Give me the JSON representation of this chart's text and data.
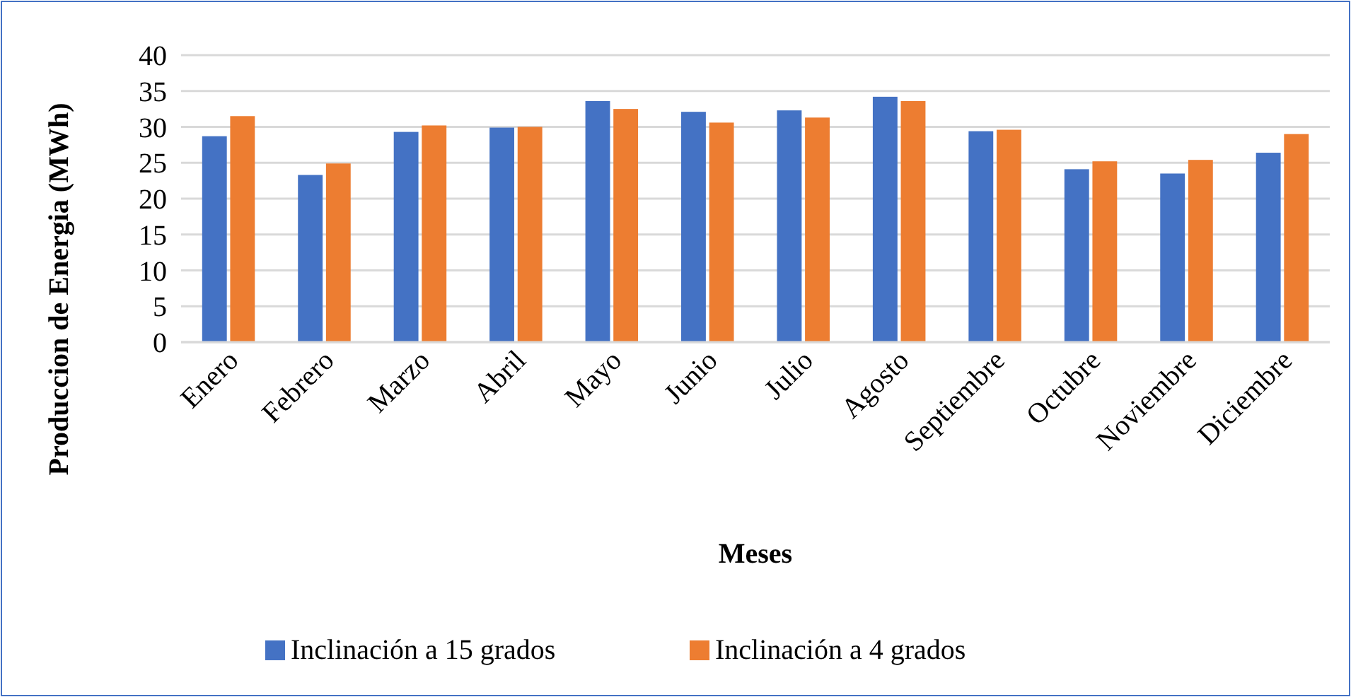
{
  "chart_data": {
    "type": "bar",
    "xlabel": "Meses",
    "ylabel": "Produccion de Energia (MWh)",
    "categories": [
      "Enero",
      "Febrero",
      "Marzo",
      "Abril",
      "Mayo",
      "Junio",
      "Julio",
      "Agosto",
      "Septiembre",
      "Octubre",
      "Noviembre",
      "Diciembre"
    ],
    "series": [
      {
        "name": "Inclinación a 15 grados",
        "color": "#4472c4",
        "values": [
          28.7,
          23.3,
          29.3,
          29.9,
          33.6,
          32.1,
          32.3,
          34.2,
          29.4,
          24.1,
          23.5,
          26.4
        ]
      },
      {
        "name": "Inclinación a 4 grados",
        "color": "#ed7d31",
        "values": [
          31.5,
          24.9,
          30.2,
          30.0,
          32.5,
          30.6,
          31.3,
          33.6,
          29.6,
          25.2,
          25.4,
          29.0
        ]
      }
    ],
    "ylim": [
      0,
      40
    ],
    "yticks": [
      0,
      5,
      10,
      15,
      20,
      25,
      30,
      35,
      40
    ],
    "grid": "y",
    "legend": "bottom"
  }
}
